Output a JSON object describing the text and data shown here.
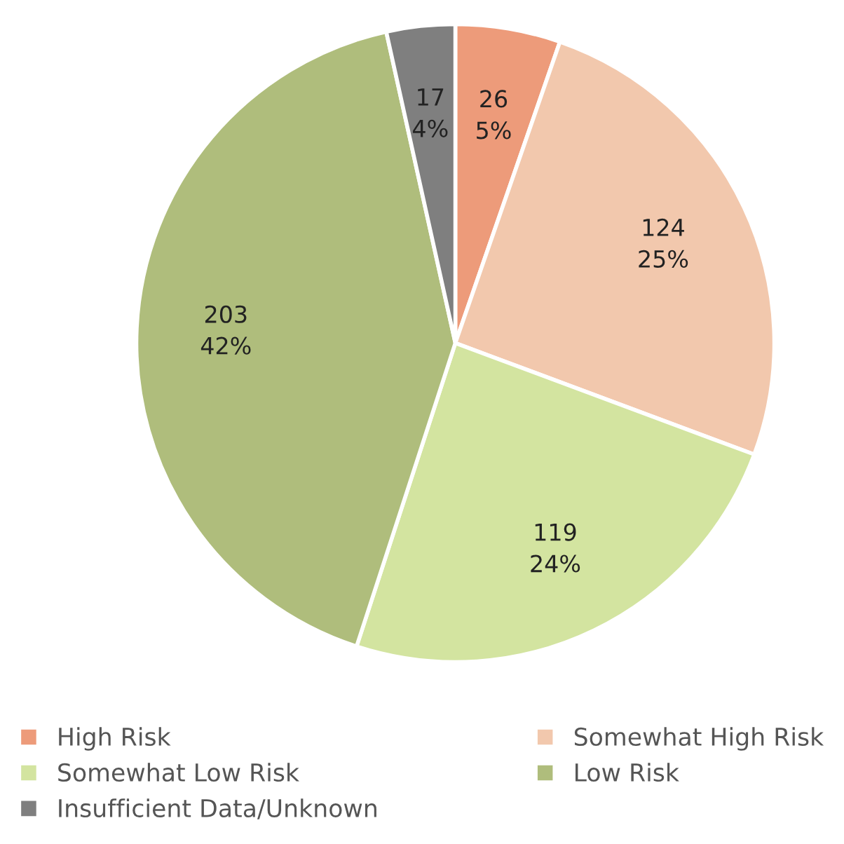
{
  "chart_data": {
    "type": "pie",
    "categories": [
      "High Risk",
      "Somewhat High Risk",
      "Somewhat Low Risk",
      "Low Risk",
      "Insufficient Data/Unknown"
    ],
    "values": [
      26,
      124,
      119,
      203,
      17
    ],
    "colors": [
      "#ed9b7a",
      "#f2c8ad",
      "#d3e4a0",
      "#afbd7c",
      "#7f7f7f"
    ],
    "value_labels": [
      "26\n5%",
      "124\n25%",
      "119\n24%",
      "203\n42%",
      "17\n4%"
    ],
    "legend": "bottom"
  }
}
